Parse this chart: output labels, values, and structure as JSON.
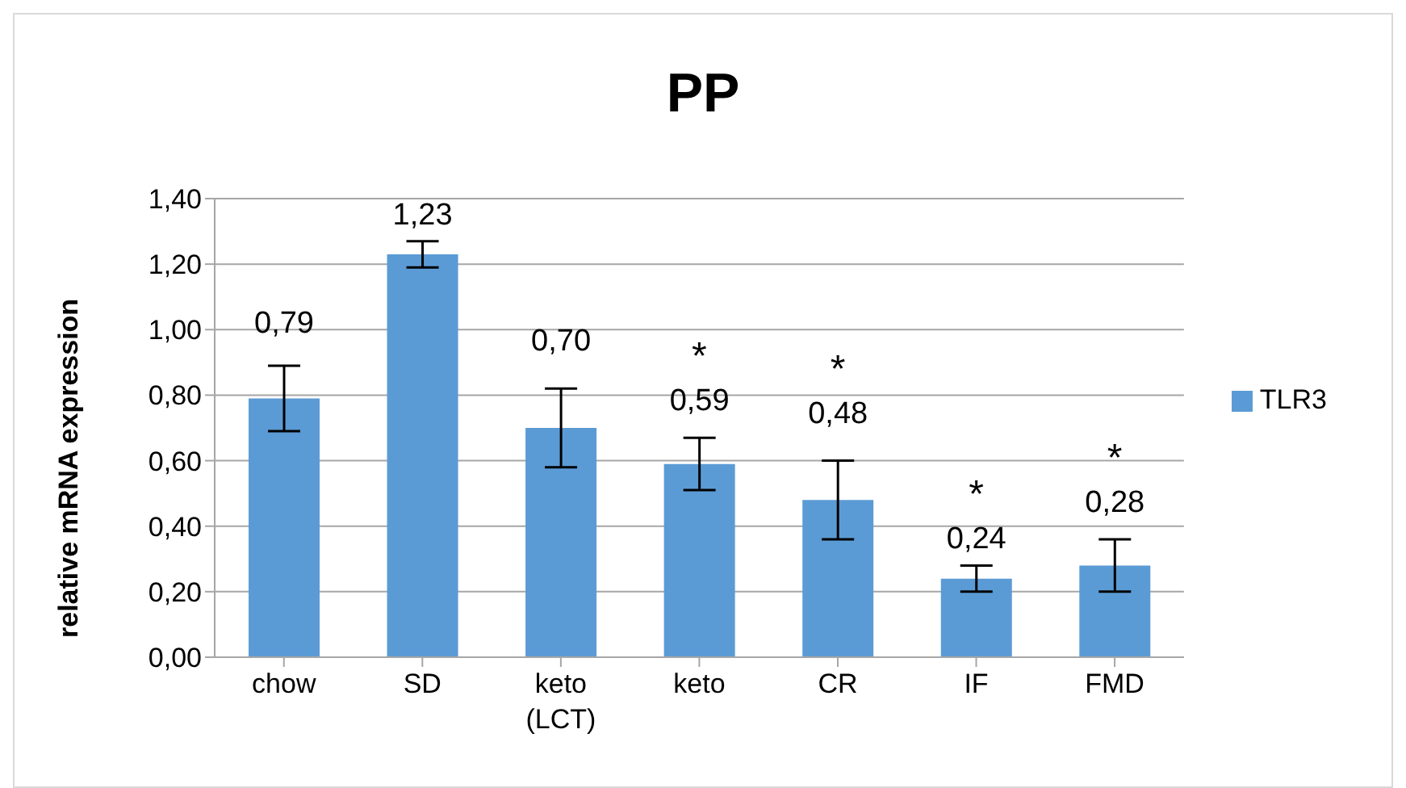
{
  "chart_data": {
    "type": "bar",
    "title": "PP",
    "ylabel": "relative mRNA expression",
    "categories": [
      "chow",
      "SD",
      "keto (LCT)",
      "keto",
      "CR",
      "IF",
      "FMD"
    ],
    "series": [
      {
        "name": "TLR3",
        "color": "#5b9bd5",
        "values": [
          0.79,
          1.23,
          0.7,
          0.59,
          0.48,
          0.24,
          0.28
        ],
        "errors": [
          0.1,
          0.04,
          0.12,
          0.08,
          0.12,
          0.04,
          0.08
        ],
        "value_labels": [
          "0,79",
          "1,23",
          "0,70",
          "0,59",
          "0,48",
          "0,24",
          "0,28"
        ]
      }
    ],
    "ylim": [
      0,
      1.4
    ],
    "yticks": [
      {
        "value": 0,
        "label": "0,00"
      },
      {
        "value": 0.2,
        "label": "0,20"
      },
      {
        "value": 0.4,
        "label": "0,40"
      },
      {
        "value": 0.6,
        "label": "0,60"
      },
      {
        "value": 0.8,
        "label": "0,80"
      },
      {
        "value": 1,
        "label": "1,00"
      },
      {
        "value": 1.2,
        "label": "1,20"
      },
      {
        "value": 1.4,
        "label": "1,40"
      }
    ],
    "grid": "y",
    "legend": "right",
    "annotations": [
      {
        "text": "*",
        "x": "keto",
        "y": 0.59
      },
      {
        "text": "*",
        "x": "CR",
        "y": 0.48
      },
      {
        "text": "*",
        "x": "IF",
        "y": 0.24
      },
      {
        "text": "*",
        "x": "FMD",
        "y": 0.28
      }
    ]
  }
}
